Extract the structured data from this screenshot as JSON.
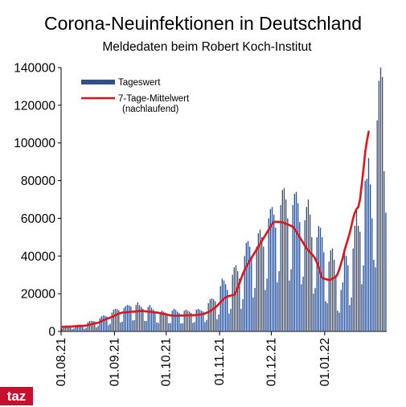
{
  "chart_data": {
    "type": "bar",
    "title": "Corona-Neuinfektionen in Deutschland",
    "subtitle": "Meldedaten beim Robert Koch-Institut",
    "xlabel": "",
    "ylabel": "",
    "ylim": [
      0,
      140000
    ],
    "yticks": [
      0,
      20000,
      40000,
      60000,
      80000,
      100000,
      120000,
      140000
    ],
    "xticks": [
      "01.08.21",
      "01.09.21",
      "01.10.21",
      "01.11.21",
      "01.12.21",
      "01.01.22"
    ],
    "start_date": "01.08.21",
    "legend_position": "top-left",
    "grid": false,
    "colors": {
      "bar": "#2f4f8f",
      "line": "#e0161b",
      "brand": "#c8102e"
    },
    "series": [
      {
        "name": "Tageswert",
        "type": "bar",
        "values": [
          1500,
          2800,
          3100,
          3200,
          3000,
          2900,
          1200,
          1600,
          3300,
          3500,
          3600,
          3600,
          3400,
          1400,
          1900,
          4800,
          5500,
          5600,
          5500,
          5300,
          2200,
          2900,
          7000,
          8000,
          8500,
          8300,
          7900,
          3300,
          4000,
          10000,
          11500,
          12000,
          11800,
          11200,
          4800,
          5200,
          12500,
          13500,
          14000,
          13800,
          13200,
          5800,
          6000,
          14000,
          15500,
          14000,
          13000,
          12000,
          5500,
          5500,
          13000,
          14000,
          12500,
          11500,
          10500,
          4700,
          4500,
          10000,
          11000,
          10500,
          10000,
          9500,
          4300,
          4400,
          11000,
          12000,
          11500,
          10500,
          9800,
          4200,
          4300,
          11000,
          11500,
          11000,
          10500,
          9800,
          4500,
          5000,
          11500,
          12000,
          11500,
          11000,
          10500,
          4900,
          6000,
          15000,
          17000,
          17500,
          17000,
          16000,
          6500,
          9000,
          24000,
          28000,
          27000,
          25000,
          22000,
          9500,
          12000,
          30000,
          34000,
          35000,
          32000,
          28000,
          12000,
          17000,
          40000,
          47000,
          48000,
          45000,
          40000,
          18000,
          23000,
          45000,
          52000,
          54000,
          50000,
          45000,
          22000,
          28000,
          60000,
          65000,
          66000,
          62000,
          55000,
          26000,
          32000,
          67000,
          75000,
          76000,
          70000,
          60000,
          27000,
          33000,
          67000,
          73000,
          74000,
          68000,
          58000,
          25000,
          29000,
          59000,
          66000,
          70000,
          62000,
          50000,
          20000,
          23000,
          50000,
          56000,
          55000,
          50000,
          42000,
          16000,
          15000,
          37000,
          43000,
          44000,
          38000,
          30000,
          11000,
          10000,
          22000,
          26000,
          42000,
          40000,
          35000,
          14000,
          18000,
          44000,
          56000,
          64000,
          56000,
          53000,
          25000,
          35000,
          80000,
          81000,
          92000,
          78000,
          60000,
          38000,
          34000,
          112000,
          133000,
          140000,
          135000,
          85000,
          63000
        ]
      },
      {
        "name": "7-Tage-Mittelwert",
        "note": "(nachlaufend)",
        "type": "line",
        "values": [
          2400,
          2450,
          2500,
          2550,
          2550,
          2600,
          2600,
          2700,
          2750,
          2800,
          2850,
          2900,
          2950,
          3000,
          3100,
          3300,
          3550,
          3750,
          4000,
          4250,
          4400,
          4600,
          5000,
          5450,
          5900,
          6300,
          6700,
          7000,
          7300,
          7700,
          8100,
          8600,
          9000,
          9400,
          9700,
          10000,
          10000,
          10100,
          10200,
          10300,
          10400,
          10500,
          10500,
          10600,
          10700,
          10800,
          10800,
          10800,
          10700,
          10600,
          10500,
          10400,
          10300,
          10200,
          10100,
          10000,
          9900,
          9700,
          9500,
          9300,
          9100,
          8900,
          8700,
          8500,
          8400,
          8350,
          8300,
          8300,
          8350,
          8400,
          8450,
          8500,
          8500,
          8500,
          8550,
          8600,
          8600,
          8650,
          8700,
          8800,
          8900,
          9000,
          9200,
          9500,
          9900,
          10300,
          10800,
          11400,
          12000,
          12700,
          13500,
          14500,
          15500,
          16500,
          17500,
          18000,
          18500,
          18800,
          19000,
          19200,
          19500,
          21000,
          23000,
          25500,
          28000,
          30500,
          32500,
          34500,
          36000,
          37500,
          39000,
          40500,
          42000,
          43500,
          45000,
          46500,
          48000,
          49500,
          51000,
          52500,
          54000,
          55500,
          57000,
          58000,
          58200,
          58200,
          58100,
          58000,
          57800,
          57500,
          57200,
          56800,
          56400,
          56000,
          55500,
          54500,
          53000,
          51500,
          50000,
          48500,
          47000,
          45500,
          44000,
          43000,
          42000,
          41000,
          40000,
          38500,
          36500,
          34000,
          31000,
          28500,
          28000,
          27800,
          27500,
          27300,
          27500,
          28000,
          28500,
          29000,
          30500,
          33000,
          36000,
          39000,
          43000,
          46000,
          49000,
          52000,
          56000,
          60000,
          63000,
          65000,
          66000,
          70000,
          78000,
          86000,
          95000,
          101000,
          106000
        ]
      }
    ]
  },
  "brand": {
    "logo_text": "taz"
  }
}
